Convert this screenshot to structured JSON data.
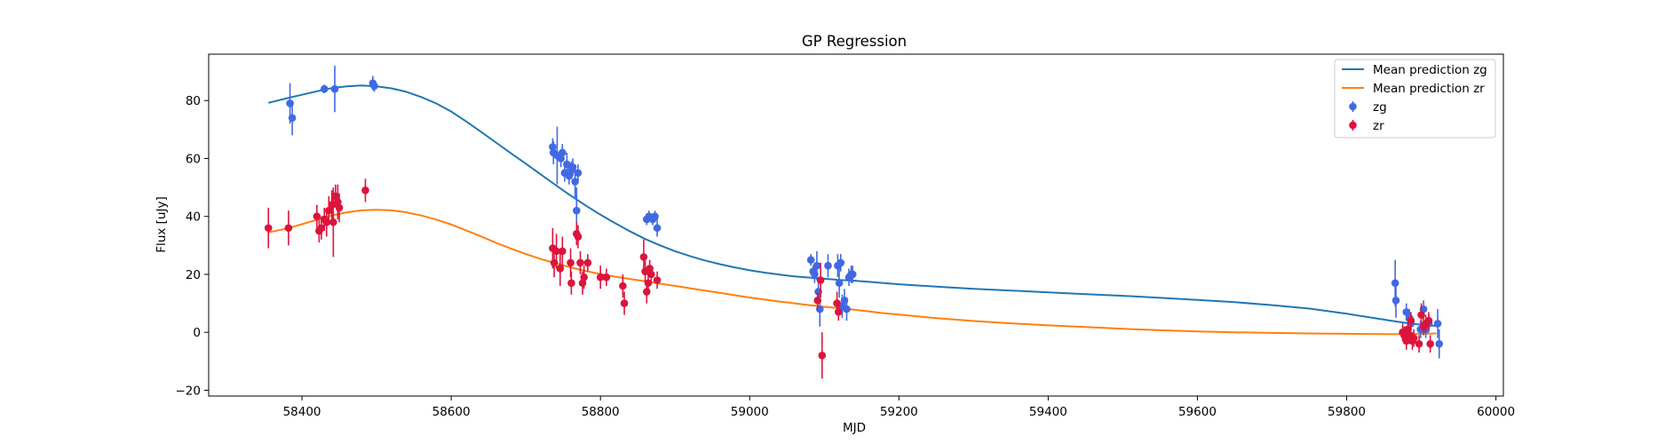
{
  "chart_data": {
    "type": "scatter",
    "title": "GP Regression",
    "xlabel": "MJD",
    "ylabel": "Flux [uJy]",
    "xlim": [
      58275,
      60010
    ],
    "ylim": [
      -22,
      96
    ],
    "xticks": [
      58400,
      58600,
      58800,
      59000,
      59200,
      59400,
      59600,
      59800,
      60000
    ],
    "yticks": [
      -20,
      0,
      20,
      40,
      60,
      80
    ],
    "grid": false,
    "legend_position": "top-right",
    "lines": [
      {
        "name": "Mean prediction zg",
        "color": "#1f77b4",
        "x": [
          58355,
          58380,
          58400,
          58420,
          58440,
          58460,
          58480,
          58500,
          58520,
          58540,
          58560,
          58580,
          58600,
          58620,
          58640,
          58660,
          58680,
          58700,
          58720,
          58740,
          58760,
          58780,
          58800,
          58820,
          58840,
          58860,
          58880,
          58900,
          58920,
          58940,
          58960,
          58980,
          59000,
          59020,
          59040,
          59060,
          59080,
          59100,
          59120,
          59140,
          59160,
          59180,
          59200,
          59250,
          59300,
          59350,
          59400,
          59450,
          59500,
          59550,
          59600,
          59650,
          59700,
          59750,
          59800,
          59830,
          59860,
          59880,
          59900,
          59920
        ],
        "y": [
          79.2,
          80.8,
          82.0,
          83.2,
          84.3,
          84.9,
          85.2,
          84.9,
          84.2,
          83.0,
          81.2,
          79.0,
          76.2,
          72.8,
          69.2,
          65.5,
          61.8,
          58.2,
          54.5,
          50.8,
          47.2,
          43.8,
          40.6,
          37.6,
          34.8,
          32.2,
          30.0,
          28.0,
          26.3,
          24.8,
          23.5,
          22.4,
          21.4,
          20.6,
          19.9,
          19.3,
          18.9,
          18.5,
          18.1,
          17.8,
          17.4,
          17.0,
          16.6,
          15.8,
          15.0,
          14.4,
          13.8,
          13.2,
          12.6,
          11.9,
          11.2,
          10.4,
          9.4,
          8.2,
          6.4,
          5.2,
          4.0,
          3.2,
          2.6,
          2.2
        ]
      },
      {
        "name": "Mean prediction zr",
        "color": "#ff7f0e",
        "x": [
          58355,
          58380,
          58400,
          58420,
          58440,
          58460,
          58480,
          58500,
          58520,
          58540,
          58560,
          58580,
          58600,
          58620,
          58640,
          58660,
          58680,
          58700,
          58720,
          58740,
          58760,
          58780,
          58800,
          58820,
          58840,
          58860,
          58880,
          58900,
          58920,
          58940,
          58960,
          58980,
          59000,
          59020,
          59040,
          59060,
          59080,
          59100,
          59120,
          59140,
          59160,
          59180,
          59200,
          59250,
          59300,
          59350,
          59400,
          59450,
          59500,
          59550,
          59600,
          59650,
          59700,
          59750,
          59800,
          59850,
          59880,
          59900,
          59920
        ],
        "y": [
          34.5,
          35.8,
          37.3,
          38.8,
          40.3,
          41.4,
          42.1,
          42.3,
          42.1,
          41.4,
          40.3,
          38.9,
          37.2,
          35.2,
          33.1,
          30.9,
          28.9,
          27.0,
          25.3,
          23.8,
          22.4,
          21.2,
          20.1,
          19.2,
          18.4,
          17.6,
          16.8,
          16.0,
          15.2,
          14.4,
          13.6,
          12.8,
          12.0,
          11.3,
          10.6,
          10.0,
          9.4,
          8.8,
          8.3,
          7.8,
          7.2,
          6.6,
          6.1,
          4.9,
          3.9,
          3.1,
          2.4,
          1.8,
          1.2,
          0.7,
          0.3,
          0.0,
          -0.2,
          -0.4,
          -0.5,
          -0.6,
          -0.6,
          -0.5,
          -0.4
        ]
      }
    ],
    "series": [
      {
        "name": "zg",
        "color": "#4169e1",
        "points": [
          [
            58384,
            79,
            7
          ],
          [
            58387,
            74,
            6
          ],
          [
            58430,
            84,
            1.5
          ],
          [
            58444,
            84,
            8
          ],
          [
            58495,
            86,
            2.5
          ],
          [
            58497,
            85,
            2
          ],
          [
            58736,
            64,
            3
          ],
          [
            58737,
            62,
            4
          ],
          [
            58742,
            61,
            10
          ],
          [
            58747,
            60,
            3
          ],
          [
            58749,
            62,
            3
          ],
          [
            58752,
            55,
            3
          ],
          [
            58755,
            58,
            4
          ],
          [
            58758,
            54,
            3
          ],
          [
            58761,
            56,
            3
          ],
          [
            58763,
            57,
            3
          ],
          [
            58766,
            52,
            6
          ],
          [
            58768,
            42,
            8
          ],
          [
            58770,
            55,
            3
          ],
          [
            58862,
            39,
            2
          ],
          [
            58865,
            40,
            2
          ],
          [
            58870,
            39,
            2
          ],
          [
            58873,
            40,
            2
          ],
          [
            58876,
            36,
            3
          ],
          [
            59082,
            25,
            2
          ],
          [
            59085,
            21,
            2
          ],
          [
            59087,
            20,
            3
          ],
          [
            59090,
            23,
            5
          ],
          [
            59092,
            14,
            4
          ],
          [
            59094,
            8,
            6
          ],
          [
            59105,
            23,
            4
          ],
          [
            59118,
            23,
            4
          ],
          [
            59120,
            17,
            5
          ],
          [
            59122,
            24,
            3
          ],
          [
            59124,
            9,
            4
          ],
          [
            59127,
            11,
            4
          ],
          [
            59130,
            8,
            4
          ],
          [
            59133,
            19,
            3
          ],
          [
            59136,
            20,
            3
          ],
          [
            59138,
            20,
            3
          ],
          [
            59865,
            17,
            8
          ],
          [
            59866,
            11,
            6
          ],
          [
            59880,
            7,
            3
          ],
          [
            59884,
            5,
            3
          ],
          [
            59886,
            3,
            4
          ],
          [
            59899,
            1,
            3
          ],
          [
            59903,
            8,
            3
          ],
          [
            59906,
            1,
            3
          ],
          [
            59910,
            3,
            3
          ],
          [
            59922,
            3,
            5
          ],
          [
            59924,
            -4,
            5
          ]
        ]
      },
      {
        "name": "zr",
        "color": "#dc143c",
        "points": [
          [
            58355,
            36,
            7
          ],
          [
            58382,
            36,
            6
          ],
          [
            58420,
            40,
            4
          ],
          [
            58423,
            35,
            4
          ],
          [
            58426,
            36,
            4
          ],
          [
            58430,
            39,
            4
          ],
          [
            58433,
            38,
            5
          ],
          [
            58436,
            42,
            5
          ],
          [
            58440,
            44,
            5
          ],
          [
            58442,
            38,
            12
          ],
          [
            58445,
            47,
            4
          ],
          [
            58448,
            45,
            6
          ],
          [
            58450,
            43,
            5
          ],
          [
            58485,
            49,
            4
          ],
          [
            58736,
            29,
            7
          ],
          [
            58738,
            24,
            5
          ],
          [
            58741,
            28,
            6
          ],
          [
            58746,
            22,
            6
          ],
          [
            58749,
            28,
            5
          ],
          [
            58760,
            24,
            5
          ],
          [
            58761,
            17,
            4
          ],
          [
            58768,
            34,
            4
          ],
          [
            58770,
            33,
            4
          ],
          [
            58773,
            24,
            4
          ],
          [
            58776,
            17,
            4
          ],
          [
            58778,
            19,
            4
          ],
          [
            58783,
            24,
            3
          ],
          [
            58800,
            19,
            4
          ],
          [
            58808,
            19,
            3
          ],
          [
            58830,
            16,
            4
          ],
          [
            58832,
            10,
            4
          ],
          [
            58858,
            26,
            6
          ],
          [
            58860,
            21,
            4
          ],
          [
            58862,
            14,
            4
          ],
          [
            58864,
            17,
            3
          ],
          [
            58866,
            22,
            3
          ],
          [
            58868,
            20,
            3
          ],
          [
            58876,
            18,
            3
          ],
          [
            59091,
            11,
            3
          ],
          [
            59095,
            18,
            6
          ],
          [
            59097,
            -8,
            8
          ],
          [
            59117,
            10,
            4
          ],
          [
            59119,
            7,
            3
          ],
          [
            59875,
            0,
            3
          ],
          [
            59877,
            -1,
            3
          ],
          [
            59880,
            -3,
            3
          ],
          [
            59882,
            1,
            3
          ],
          [
            59884,
            -1,
            3
          ],
          [
            59886,
            4,
            3
          ],
          [
            59888,
            -3,
            3
          ],
          [
            59890,
            -2,
            3
          ],
          [
            59897,
            -4,
            3
          ],
          [
            59900,
            6,
            4
          ],
          [
            59903,
            2,
            3
          ],
          [
            59906,
            3,
            3
          ],
          [
            59910,
            4,
            3
          ],
          [
            59912,
            -4,
            3
          ]
        ]
      }
    ]
  }
}
